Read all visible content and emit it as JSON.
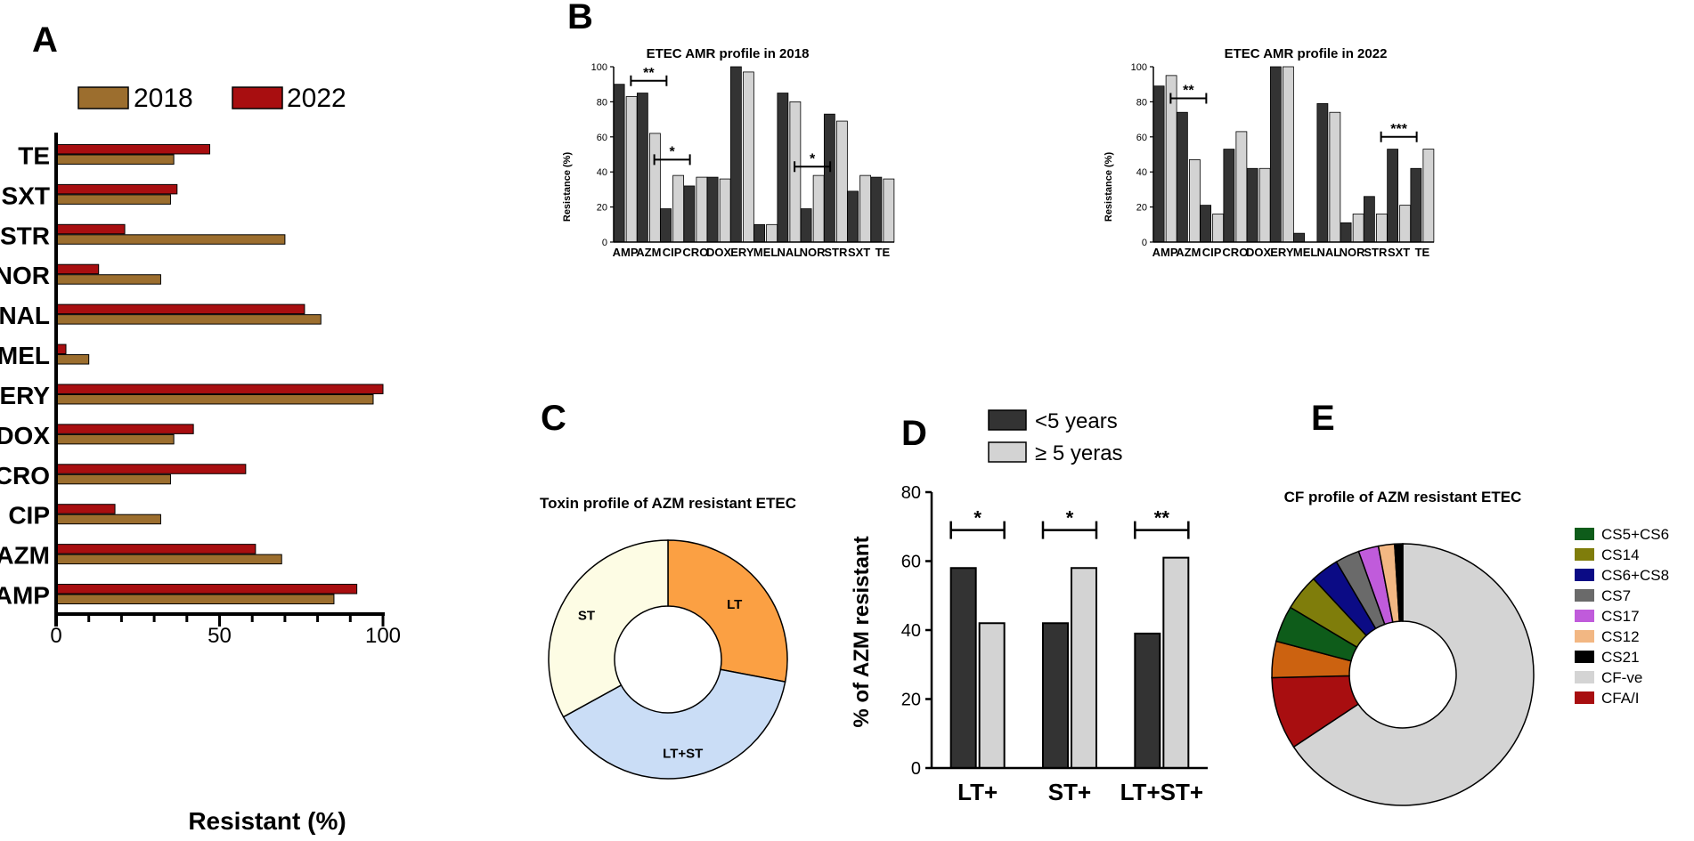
{
  "panel_labels": {
    "a": "A",
    "b": "B",
    "c": "C",
    "d": "D",
    "e": "E"
  },
  "colors": {
    "y2018": "#9C6E2E",
    "y2022": "#A80E10",
    "dark": "#333333",
    "light": "#D3D3D3"
  },
  "chart_data": [
    {
      "id": "A",
      "type": "bar",
      "orientation": "horizontal",
      "categories": [
        "AMP",
        "AZM",
        "CIP",
        "CRO",
        "DOX",
        "ERY",
        "MEL",
        "NAL",
        "NOR",
        "STR",
        "SXT",
        "TE"
      ],
      "series": [
        {
          "name": "2018",
          "values": [
            85,
            69,
            32,
            35,
            36,
            97,
            10,
            81,
            32,
            70,
            35,
            36
          ]
        },
        {
          "name": "2022",
          "values": [
            92,
            61,
            18,
            58,
            42,
            100,
            3,
            76,
            13,
            21,
            37,
            47
          ]
        }
      ],
      "xlabel": "Resistant (%)",
      "xlim": [
        0,
        100
      ],
      "xticks": [
        "0",
        "50",
        "100"
      ]
    },
    {
      "id": "B1",
      "type": "bar",
      "title": "ETEC AMR profile in 2018",
      "ylabel": "Resistance (%)",
      "ylim": [
        0,
        100
      ],
      "yticks": [
        "0",
        "20",
        "40",
        "60",
        "80",
        "100"
      ],
      "categories": [
        "AMP",
        "AZM",
        "CIP",
        "CRO",
        "DOX",
        "ERY",
        "MEL",
        "NAL",
        "NOR",
        "STR",
        "SXT",
        "TE"
      ],
      "series": [
        {
          "name": "dark",
          "values": [
            90,
            85,
            19,
            32,
            37,
            100,
            10,
            85,
            19,
            73,
            29,
            37
          ]
        },
        {
          "name": "light",
          "values": [
            83,
            62,
            38,
            37,
            36,
            97,
            10,
            80,
            38,
            69,
            38,
            36
          ]
        }
      ],
      "annotations": [
        {
          "category": "AZM",
          "label": "**",
          "value": 92
        },
        {
          "category": "CIP",
          "label": "*",
          "value": 47
        },
        {
          "category": "NOR",
          "label": "*",
          "value": 43
        }
      ]
    },
    {
      "id": "B2",
      "type": "bar",
      "title": "ETEC AMR profile in 2022",
      "ylabel": "Resistance (%)",
      "ylim": [
        0,
        100
      ],
      "yticks": [
        "0",
        "20",
        "40",
        "60",
        "80",
        "100"
      ],
      "categories": [
        "AMP",
        "AZM",
        "CIP",
        "CRO",
        "DOX",
        "ERY",
        "MEL",
        "NAL",
        "NOR",
        "STR",
        "SXT",
        "TE"
      ],
      "series": [
        {
          "name": "dark",
          "values": [
            89,
            74,
            21,
            53,
            42,
            100,
            5,
            79,
            11,
            26,
            53,
            42
          ]
        },
        {
          "name": "light",
          "values": [
            95,
            47,
            16,
            63,
            42,
            100,
            0,
            74,
            16,
            16,
            21,
            53
          ]
        }
      ],
      "annotations": [
        {
          "category": "AZM",
          "label": "**",
          "value": 82
        },
        {
          "category": "SXT",
          "label": "***",
          "value": 60
        }
      ]
    },
    {
      "id": "C",
      "type": "pie",
      "title": "Toxin profile of AZM resistant ETEC",
      "slices": [
        {
          "label": "LT",
          "value": 28,
          "color": "#FBA043"
        },
        {
          "label": "LT+ST",
          "value": 39,
          "color": "#CADDF6"
        },
        {
          "label": "ST",
          "value": 33,
          "color": "#FDFCE4"
        }
      ]
    },
    {
      "id": "D",
      "type": "bar",
      "ylabel": "% of AZM resistant",
      "ylim": [
        0,
        80
      ],
      "yticks": [
        "0",
        "20",
        "40",
        "60",
        "80"
      ],
      "categories": [
        "LT+",
        "ST+",
        "LT+ST+"
      ],
      "series": [
        {
          "name": "<5 years",
          "values": [
            58,
            42,
            39
          ]
        },
        {
          "name": "≥ 5 yeras",
          "values": [
            42,
            58,
            61
          ]
        }
      ],
      "annotations": [
        {
          "category": "LT+",
          "label": "*",
          "value": 69
        },
        {
          "category": "ST+",
          "label": "*",
          "value": 69
        },
        {
          "category": "LT+ST+",
          "label": "**",
          "value": 69
        }
      ]
    },
    {
      "id": "E",
      "type": "pie",
      "title": "CF profile of AZM resistant ETEC",
      "legend_order": [
        "CS5+CS6",
        "CS14",
        "CS6+CS8",
        "CS7",
        "CS17",
        "CS12",
        "CS21",
        "CF-ve",
        "CFA/I"
      ],
      "slices": [
        {
          "label": "CF-ve",
          "value": 66,
          "color": "#D4D4D4"
        },
        {
          "label": "CFA/I",
          "value": 9,
          "color": "#A80E10"
        },
        {
          "label": "",
          "value": 4.5,
          "color": "#CC6210"
        },
        {
          "label": "CS5+CS6",
          "value": 4.5,
          "color": "#0E5C1A"
        },
        {
          "label": "CS14",
          "value": 4.5,
          "color": "#7F7D0B"
        },
        {
          "label": "CS6+CS8",
          "value": 3.5,
          "color": "#0B0B85"
        },
        {
          "label": "CS7",
          "value": 3,
          "color": "#6A6A6A"
        },
        {
          "label": "CS17",
          "value": 2.5,
          "color": "#C05BDB"
        },
        {
          "label": "CS12",
          "value": 2,
          "color": "#F2B783"
        },
        {
          "label": "CS21",
          "value": 1,
          "color": "#000000"
        }
      ]
    }
  ]
}
